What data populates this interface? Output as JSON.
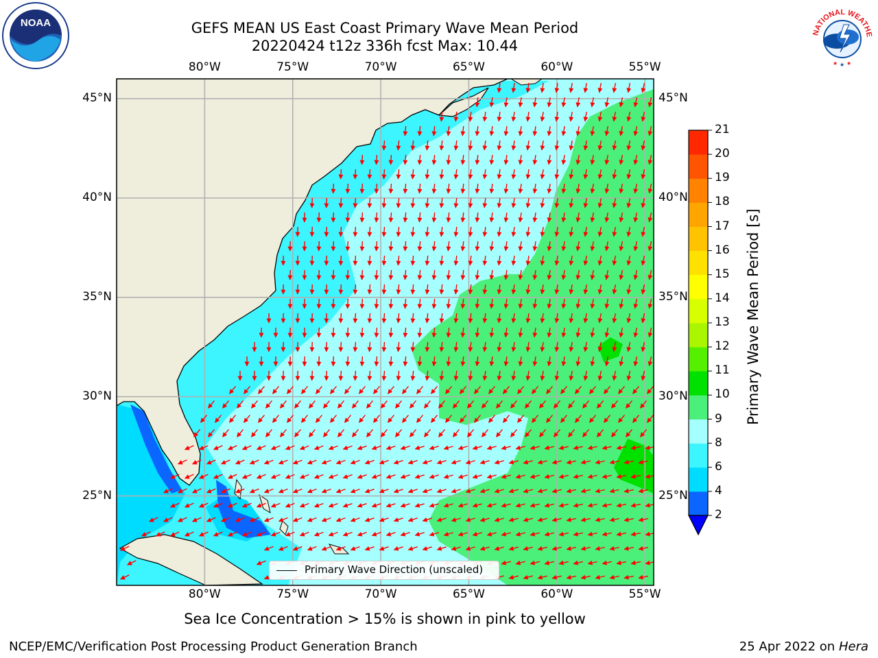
{
  "title": {
    "line1": "GEFS MEAN US East Coast Primary Wave Mean Period",
    "line2": "20220424 t12z 336h fcst   Max: 10.44"
  },
  "map": {
    "lon_labels": [
      "80°W",
      "75°W",
      "70°W",
      "65°W",
      "60°W",
      "55°W"
    ],
    "lon_values": [
      -80,
      -75,
      -70,
      -65,
      -60,
      -55
    ],
    "lat_labels": [
      "45°N",
      "40°N",
      "35°N",
      "30°N",
      "25°N"
    ],
    "lat_values": [
      45,
      40,
      35,
      30,
      25
    ],
    "lon_range": [
      -85,
      -54.5
    ],
    "lat_range": [
      20.5,
      46
    ],
    "land_color": "#efeedd",
    "grid": true,
    "legend_text": "Primary Wave Direction (unscaled)",
    "arrow_color": "#ff0000"
  },
  "colorbar": {
    "label": "Primary Wave Mean Period [s]",
    "levels": [
      2,
      4,
      6,
      8,
      9,
      10,
      11,
      12,
      13,
      14,
      15,
      16,
      17,
      18,
      19,
      20,
      21
    ],
    "colors": [
      "#0a66ff",
      "#00dcff",
      "#3cf5ff",
      "#a6ffff",
      "#4bf07a",
      "#00e100",
      "#55f000",
      "#aaf500",
      "#d7ff00",
      "#ffff00",
      "#ffe100",
      "#ffc300",
      "#ffa500",
      "#ff8200",
      "#ff5500",
      "#ff2800"
    ],
    "under_color": "#0000ff"
  },
  "footer": {
    "note": "Sea Ice Concentration > 15% is shown in pink to yellow",
    "credit": "NCEP/EMC/Verification Post Processing Product Generation Branch",
    "date": "25 Apr 2022 on",
    "host": "Hera"
  },
  "logos": {
    "noaa": "NOAA",
    "nws": "NATIONAL WEATHER SERVICE"
  }
}
